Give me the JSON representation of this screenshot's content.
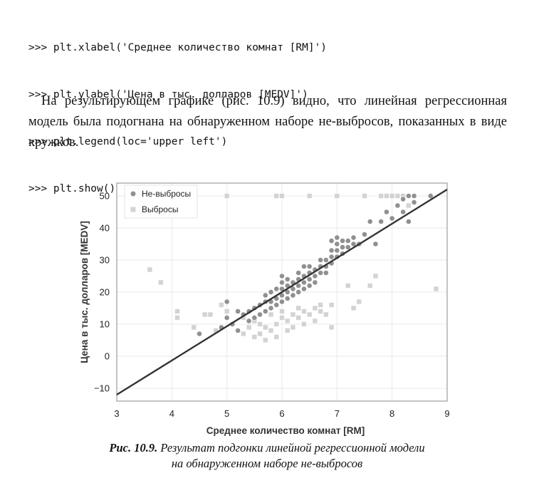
{
  "code_lines": [
    ">>> plt.xlabel('Среднее количество комнат [RM]')",
    ">>> plt.ylabel('Цена в тыс. долларов [MEDV]')",
    ">>> plt.legend(loc='upper left')",
    ">>> plt.show()"
  ],
  "paragraph": "На результирующем графике (рис. 10.9) видно, что линейная регрессионная модель была подогнана на обнаруженном наборе не-выбросов, показанных в виде кружков.",
  "caption": {
    "label": "Рис. 10.9.",
    "line1": "Результат подгонки линейной регрессионной модели",
    "line2": "на обнаруженном наборе не-выбросов"
  },
  "chart_data": {
    "type": "scatter",
    "xlabel": "Среднее количество комнат [RM]",
    "ylabel": "Цена в тыс. долларов [MEDV]",
    "xlim": [
      3,
      9
    ],
    "ylim": [
      -14,
      54
    ],
    "xticks": [
      "3",
      "4",
      "5",
      "6",
      "7",
      "8",
      "9"
    ],
    "yticks": [
      "−10",
      "0",
      "10",
      "20",
      "30",
      "40",
      "50"
    ],
    "legend_position": "top-left",
    "grid": true,
    "series": [
      {
        "name": "Не-выбросы",
        "marker": "circle",
        "color": "#909090",
        "points": [
          [
            4.5,
            7
          ],
          [
            4.9,
            9
          ],
          [
            5.0,
            12
          ],
          [
            5.1,
            10
          ],
          [
            5.2,
            8
          ],
          [
            5.3,
            13
          ],
          [
            5.4,
            14
          ],
          [
            5.4,
            11
          ],
          [
            5.5,
            15
          ],
          [
            5.5,
            12
          ],
          [
            5.6,
            16
          ],
          [
            5.6,
            13
          ],
          [
            5.7,
            17
          ],
          [
            5.7,
            14
          ],
          [
            5.7,
            19
          ],
          [
            5.8,
            17
          ],
          [
            5.8,
            15
          ],
          [
            5.8,
            20
          ],
          [
            5.9,
            18
          ],
          [
            5.9,
            21
          ],
          [
            5.9,
            16
          ],
          [
            6.0,
            19
          ],
          [
            6.0,
            21
          ],
          [
            6.0,
            17
          ],
          [
            6.0,
            23
          ],
          [
            6.1,
            20
          ],
          [
            6.1,
            22
          ],
          [
            6.1,
            18
          ],
          [
            6.1,
            24
          ],
          [
            6.2,
            21
          ],
          [
            6.2,
            23
          ],
          [
            6.2,
            19
          ],
          [
            6.3,
            22
          ],
          [
            6.3,
            24
          ],
          [
            6.3,
            26
          ],
          [
            6.3,
            20
          ],
          [
            6.4,
            23
          ],
          [
            6.4,
            25
          ],
          [
            6.4,
            21
          ],
          [
            6.5,
            24
          ],
          [
            6.5,
            26
          ],
          [
            6.5,
            22
          ],
          [
            6.5,
            28
          ],
          [
            6.6,
            25
          ],
          [
            6.6,
            27
          ],
          [
            6.6,
            23
          ],
          [
            6.7,
            26
          ],
          [
            6.7,
            28
          ],
          [
            6.7,
            30
          ],
          [
            6.8,
            28
          ],
          [
            6.8,
            30
          ],
          [
            6.8,
            26
          ],
          [
            6.9,
            29
          ],
          [
            6.9,
            31
          ],
          [
            6.9,
            33
          ],
          [
            7.0,
            31
          ],
          [
            7.0,
            33
          ],
          [
            7.0,
            35
          ],
          [
            7.1,
            32
          ],
          [
            7.1,
            34
          ],
          [
            7.1,
            36
          ],
          [
            7.2,
            34
          ],
          [
            7.2,
            36
          ],
          [
            7.3,
            35
          ],
          [
            7.3,
            37
          ],
          [
            7.4,
            35
          ],
          [
            7.5,
            38
          ],
          [
            7.7,
            35
          ],
          [
            7.8,
            42
          ],
          [
            7.9,
            45
          ],
          [
            8.0,
            43
          ],
          [
            8.1,
            47
          ],
          [
            8.2,
            45
          ],
          [
            8.2,
            49
          ],
          [
            8.3,
            42
          ],
          [
            8.3,
            50
          ],
          [
            8.4,
            48
          ],
          [
            8.4,
            50
          ],
          [
            8.7,
            50
          ],
          [
            5.0,
            17
          ],
          [
            5.2,
            14
          ],
          [
            6.0,
            25
          ],
          [
            6.4,
            28
          ],
          [
            6.9,
            36
          ],
          [
            7.0,
            37
          ],
          [
            7.6,
            42
          ]
        ]
      },
      {
        "name": "Выбросы",
        "marker": "square",
        "color": "#d3d3d3",
        "points": [
          [
            3.6,
            27
          ],
          [
            3.8,
            23
          ],
          [
            4.1,
            14
          ],
          [
            4.1,
            12
          ],
          [
            4.4,
            9
          ],
          [
            4.6,
            13
          ],
          [
            4.7,
            13
          ],
          [
            4.8,
            8
          ],
          [
            4.9,
            16
          ],
          [
            5.0,
            14
          ],
          [
            5.0,
            50
          ],
          [
            5.2,
            14
          ],
          [
            5.3,
            7
          ],
          [
            5.3,
            12
          ],
          [
            5.4,
            9
          ],
          [
            5.5,
            6
          ],
          [
            5.5,
            11
          ],
          [
            5.6,
            10
          ],
          [
            5.6,
            7
          ],
          [
            5.7,
            5
          ],
          [
            5.7,
            9
          ],
          [
            5.8,
            13
          ],
          [
            5.8,
            8
          ],
          [
            5.9,
            10
          ],
          [
            5.9,
            6
          ],
          [
            6.0,
            12
          ],
          [
            6.0,
            14
          ],
          [
            6.0,
            50
          ],
          [
            6.1,
            11
          ],
          [
            6.1,
            8
          ],
          [
            6.2,
            13
          ],
          [
            6.2,
            9
          ],
          [
            6.3,
            12
          ],
          [
            6.3,
            15
          ],
          [
            6.4,
            14
          ],
          [
            6.4,
            10
          ],
          [
            6.5,
            13
          ],
          [
            6.5,
            50
          ],
          [
            6.6,
            15
          ],
          [
            6.6,
            11
          ],
          [
            6.7,
            14
          ],
          [
            6.7,
            16
          ],
          [
            6.8,
            13
          ],
          [
            6.9,
            16
          ],
          [
            6.9,
            9
          ],
          [
            7.0,
            50
          ],
          [
            7.2,
            22
          ],
          [
            7.3,
            15
          ],
          [
            7.4,
            17
          ],
          [
            7.5,
            50
          ],
          [
            7.6,
            22
          ],
          [
            7.7,
            25
          ],
          [
            7.8,
            50
          ],
          [
            7.9,
            50
          ],
          [
            8.0,
            50
          ],
          [
            8.1,
            50
          ],
          [
            8.2,
            50
          ],
          [
            8.3,
            47
          ],
          [
            8.8,
            21
          ],
          [
            5.9,
            50
          ]
        ]
      }
    ],
    "fit_line": {
      "x": [
        3.0,
        9.0
      ],
      "y": [
        -12,
        52
      ],
      "color": "#333333"
    }
  }
}
